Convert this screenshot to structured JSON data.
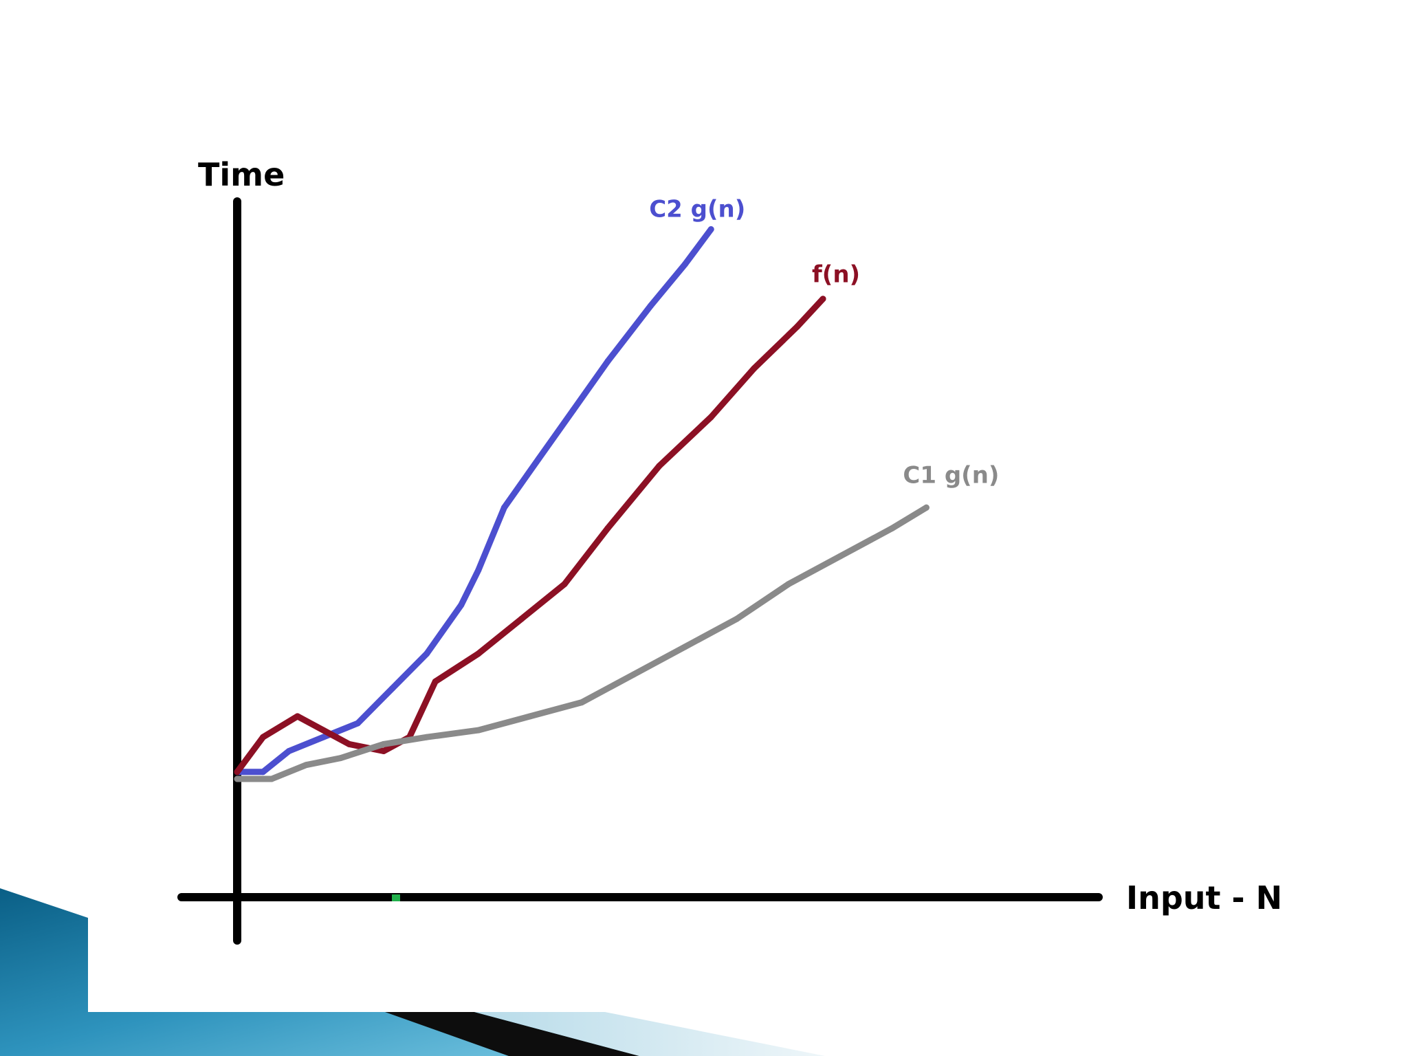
{
  "chart_data": {
    "type": "line",
    "title": "",
    "ylabel": "Time",
    "xlabel": "Input - N",
    "xlim": [
      0,
      100
    ],
    "ylim": [
      0,
      100
    ],
    "grid": false,
    "legend": "inline labels at line ends",
    "series": [
      {
        "name": "C2 g(n)",
        "color": "#4c4fcf",
        "points": [
          [
            0,
            18
          ],
          [
            3,
            18
          ],
          [
            6,
            21
          ],
          [
            10,
            23
          ],
          [
            14,
            25
          ],
          [
            18,
            30
          ],
          [
            22,
            35
          ],
          [
            26,
            42
          ],
          [
            28,
            47
          ],
          [
            31,
            56
          ],
          [
            35,
            63
          ],
          [
            39,
            70
          ],
          [
            43,
            77
          ],
          [
            48,
            85
          ],
          [
            52,
            91
          ],
          [
            55,
            96
          ]
        ]
      },
      {
        "name": "f(n)",
        "color": "#8c1024",
        "points": [
          [
            0,
            18
          ],
          [
            3,
            23
          ],
          [
            7,
            26
          ],
          [
            10,
            24
          ],
          [
            13,
            22
          ],
          [
            17,
            21
          ],
          [
            20,
            23
          ],
          [
            23,
            31
          ],
          [
            28,
            35
          ],
          [
            33,
            40
          ],
          [
            38,
            45
          ],
          [
            43,
            53
          ],
          [
            49,
            62
          ],
          [
            55,
            69
          ],
          [
            60,
            76
          ],
          [
            65,
            82
          ],
          [
            68,
            86
          ]
        ]
      },
      {
        "name": "C1 g(n)",
        "color": "#8a8a8a",
        "points": [
          [
            0,
            17
          ],
          [
            4,
            17
          ],
          [
            8,
            19
          ],
          [
            12,
            20
          ],
          [
            17,
            22
          ],
          [
            22,
            23
          ],
          [
            28,
            24
          ],
          [
            34,
            26
          ],
          [
            40,
            28
          ],
          [
            46,
            32
          ],
          [
            52,
            36
          ],
          [
            58,
            40
          ],
          [
            64,
            45
          ],
          [
            70,
            49
          ],
          [
            76,
            53
          ],
          [
            80,
            56
          ]
        ]
      }
    ]
  }
}
